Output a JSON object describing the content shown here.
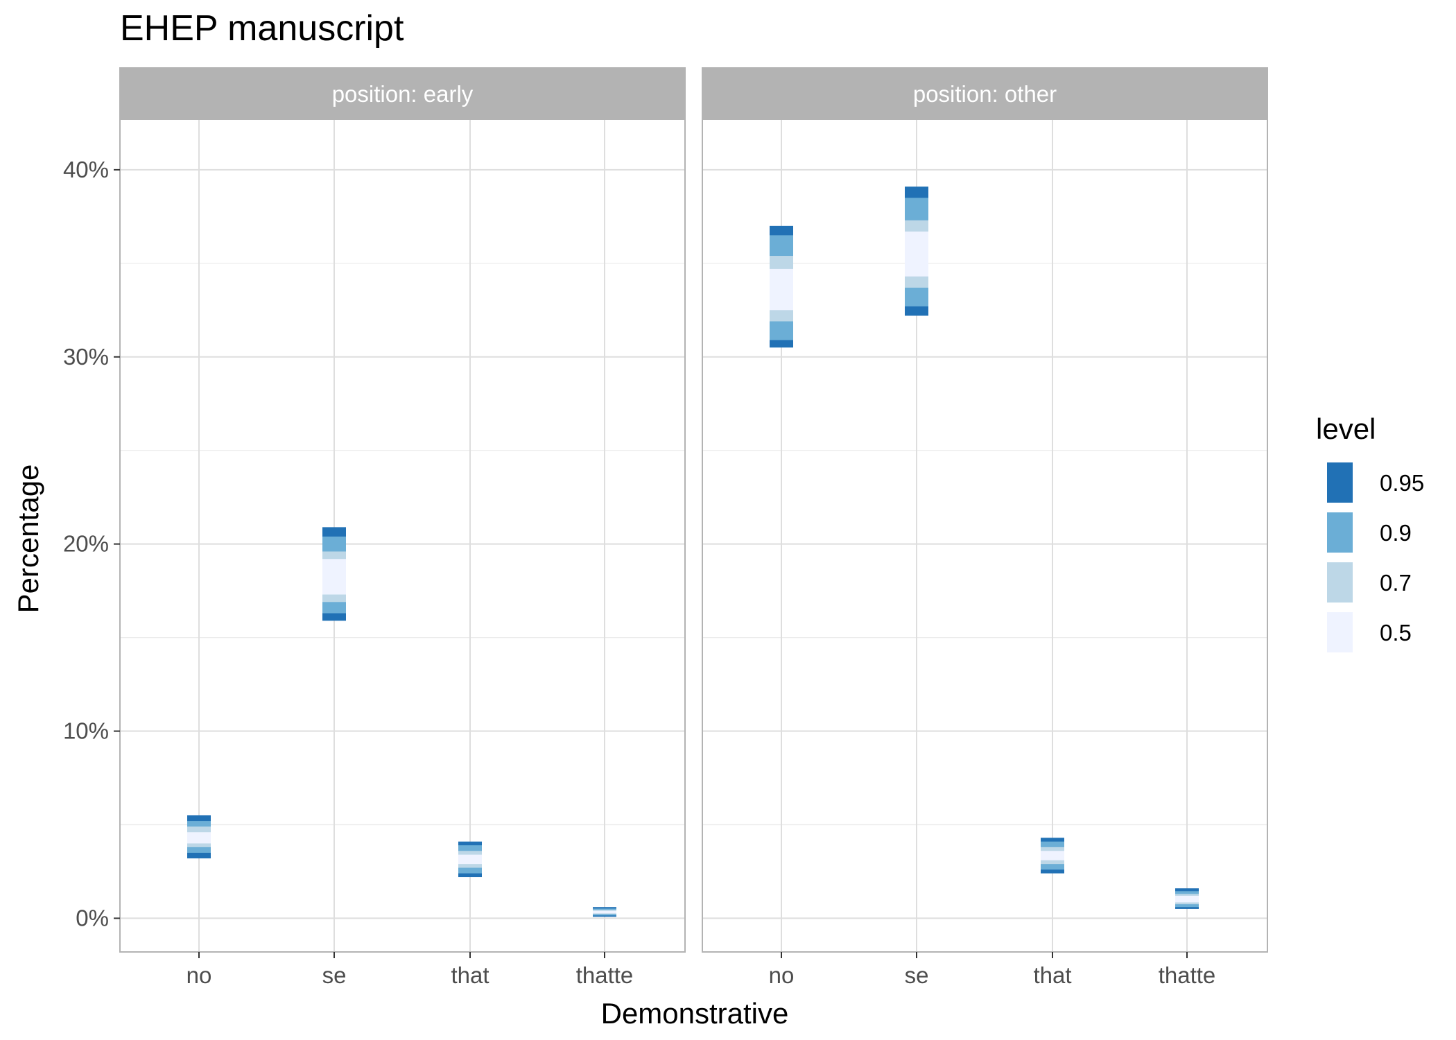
{
  "chart_data": {
    "type": "interval",
    "title": "EHEP manuscript",
    "xlabel": "Demonstrative",
    "ylabel": "Percentage",
    "ylim": [
      -1.8,
      42.7
    ],
    "yticks": [
      0,
      10,
      20,
      30,
      40
    ],
    "ytick_labels": [
      "0%",
      "10%",
      "20%",
      "30%",
      "40%"
    ],
    "categories": [
      "no",
      "se",
      "that",
      "thatte"
    ],
    "legend": {
      "title": "level",
      "position": "right",
      "levels": [
        "0.95",
        "0.9",
        "0.7",
        "0.5"
      ],
      "colors": [
        "#2171b5",
        "#6baed6",
        "#bdd7e7",
        "#eff3ff"
      ]
    },
    "grid": true,
    "panels": [
      {
        "strip": "position: early",
        "intervals": [
          {
            "category": "no",
            "l95": [
              3.2,
              5.5
            ],
            "l90": [
              3.5,
              5.2
            ],
            "l70": [
              3.8,
              4.9
            ],
            "l50": [
              4.0,
              4.6
            ]
          },
          {
            "category": "se",
            "l95": [
              15.9,
              20.9
            ],
            "l90": [
              16.3,
              20.4
            ],
            "l70": [
              16.9,
              19.6
            ],
            "l50": [
              17.3,
              19.2
            ]
          },
          {
            "category": "that",
            "l95": [
              2.2,
              4.1
            ],
            "l90": [
              2.4,
              3.9
            ],
            "l70": [
              2.7,
              3.6
            ],
            "l50": [
              2.9,
              3.4
            ]
          },
          {
            "category": "thatte",
            "l95": [
              0.08,
              0.6
            ],
            "l90": [
              0.15,
              0.52
            ],
            "l70": [
              0.22,
              0.45
            ],
            "l50": [
              0.26,
              0.4
            ]
          }
        ]
      },
      {
        "strip": "position: other",
        "intervals": [
          {
            "category": "no",
            "l95": [
              30.5,
              37.0
            ],
            "l90": [
              30.9,
              36.5
            ],
            "l70": [
              31.9,
              35.4
            ],
            "l50": [
              32.5,
              34.7
            ]
          },
          {
            "category": "se",
            "l95": [
              32.2,
              39.1
            ],
            "l90": [
              32.7,
              38.5
            ],
            "l70": [
              33.7,
              37.3
            ],
            "l50": [
              34.3,
              36.7
            ]
          },
          {
            "category": "that",
            "l95": [
              2.4,
              4.3
            ],
            "l90": [
              2.6,
              4.1
            ],
            "l70": [
              2.9,
              3.8
            ],
            "l50": [
              3.1,
              3.6
            ]
          },
          {
            "category": "thatte",
            "l95": [
              0.5,
              1.6
            ],
            "l90": [
              0.6,
              1.45
            ],
            "l70": [
              0.75,
              1.3
            ],
            "l50": [
              0.85,
              1.2
            ]
          }
        ]
      }
    ]
  }
}
